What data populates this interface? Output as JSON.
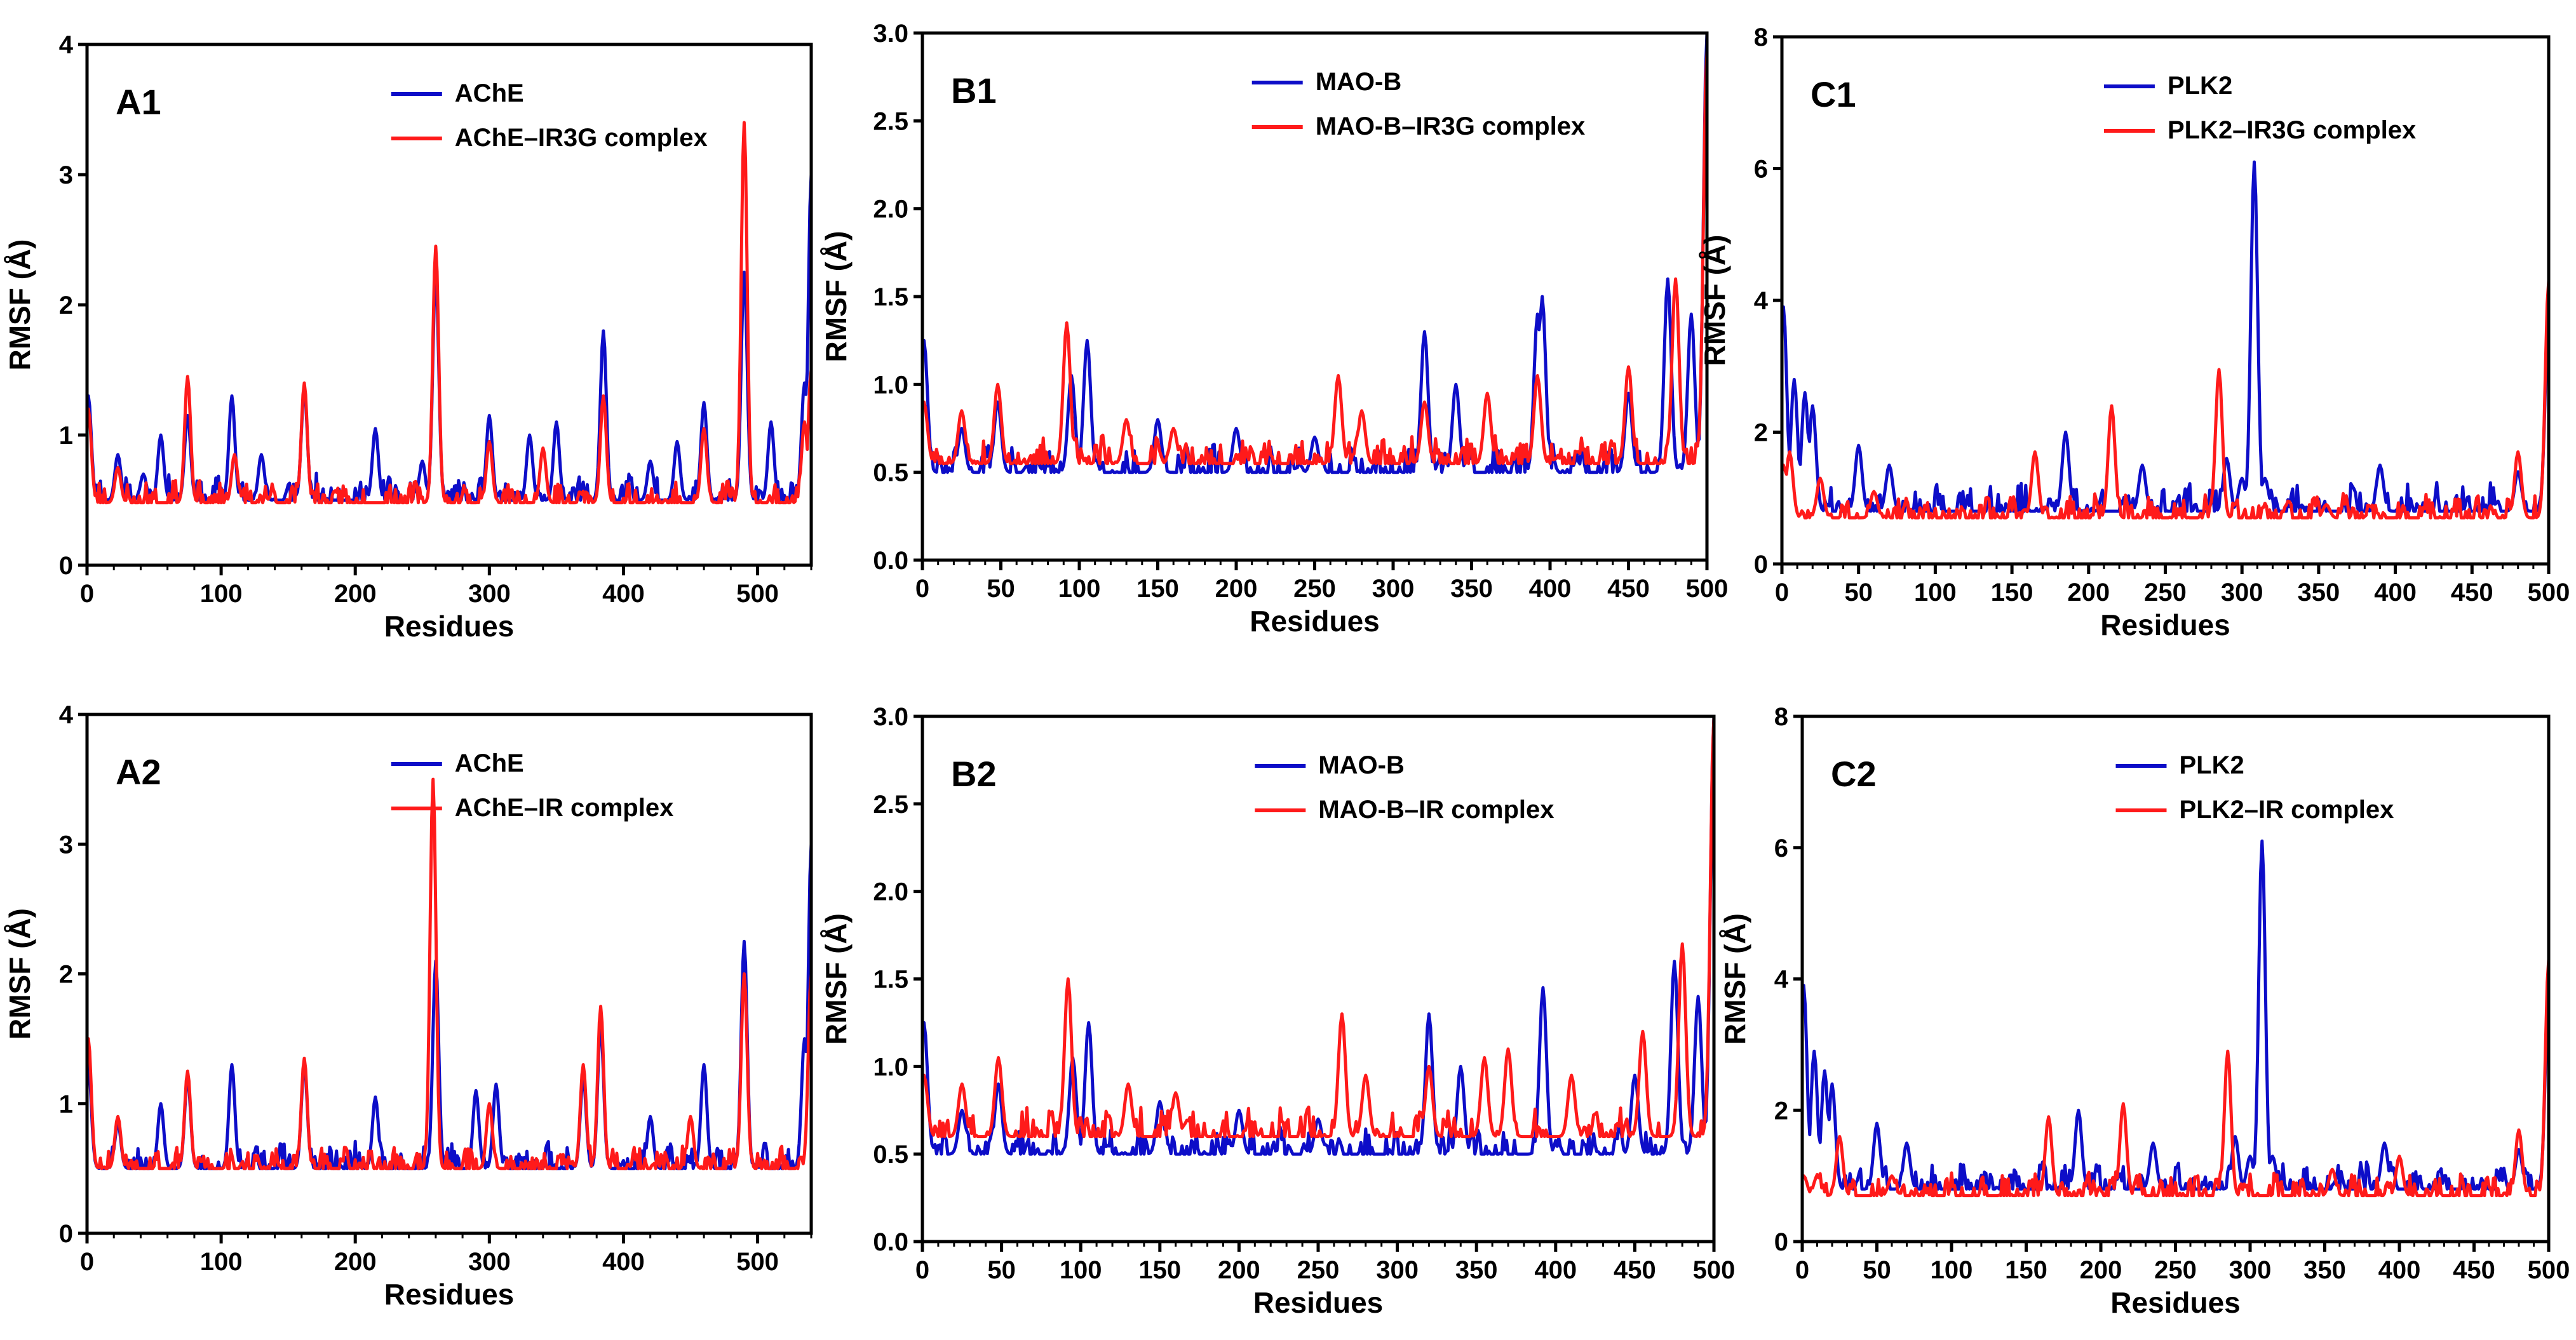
{
  "figure": {
    "colors": {
      "protein": "#0d0dc8",
      "complex": "#ff1a1a",
      "axis": "#000000"
    }
  },
  "chart_data": [
    {
      "id": "A1",
      "type": "line",
      "panel_label": "A1",
      "xlabel": "Residues",
      "ylabel": "RMSF (Å)",
      "xlim": [
        0,
        540
      ],
      "ylim": [
        0,
        4
      ],
      "xticks": [
        0,
        100,
        200,
        300,
        400,
        500
      ],
      "yticks": [
        0,
        1,
        2,
        3,
        4
      ],
      "ytick_labels": [
        "0",
        "1",
        "2",
        "3",
        "4"
      ],
      "legend": [
        "AChE",
        "AChE–IR3G complex"
      ],
      "series": [
        {
          "name": "AChE",
          "color": "#0d0dc8",
          "baseline": 0.5,
          "noise": 0.14,
          "seed": 11,
          "peaks": [
            [
              1,
              1.3
            ],
            [
              23,
              0.85
            ],
            [
              42,
              0.7
            ],
            [
              55,
              1.0
            ],
            [
              75,
              1.15
            ],
            [
              108,
              1.3
            ],
            [
              130,
              0.85
            ],
            [
              162,
              1.35
            ],
            [
              215,
              1.05
            ],
            [
              250,
              0.8
            ],
            [
              260,
              2.25
            ],
            [
              300,
              1.15
            ],
            [
              330,
              1.0
            ],
            [
              350,
              1.1
            ],
            [
              385,
              1.8
            ],
            [
              420,
              0.8
            ],
            [
              440,
              0.95
            ],
            [
              460,
              1.25
            ],
            [
              490,
              2.25
            ],
            [
              510,
              1.1
            ],
            [
              535,
              1.4
            ],
            [
              540,
              3.0
            ]
          ]
        },
        {
          "name": "AChE–IR3G complex",
          "color": "#ff1a1a",
          "baseline": 0.48,
          "noise": 0.12,
          "seed": 23,
          "peaks": [
            [
              1,
              1.2
            ],
            [
              23,
              0.75
            ],
            [
              75,
              1.45
            ],
            [
              110,
              0.85
            ],
            [
              162,
              1.4
            ],
            [
              260,
              2.45
            ],
            [
              300,
              0.95
            ],
            [
              340,
              0.9
            ],
            [
              385,
              1.3
            ],
            [
              460,
              1.05
            ],
            [
              490,
              3.4
            ],
            [
              535,
              1.1
            ],
            [
              540,
              1.5
            ]
          ]
        }
      ]
    },
    {
      "id": "B1",
      "type": "line",
      "panel_label": "B1",
      "xlabel": "Residues",
      "ylabel": "RMSF (Å)",
      "xlim": [
        0,
        500
      ],
      "ylim": [
        0,
        3
      ],
      "xticks": [
        0,
        50,
        100,
        150,
        200,
        250,
        300,
        350,
        400,
        450,
        500
      ],
      "yticks": [
        0,
        0.5,
        1,
        1.5,
        2,
        2.5,
        3
      ],
      "ytick_labels": [
        "0.0",
        "0.5",
        "1.0",
        "1.5",
        "2.0",
        "2.5",
        "3.0"
      ],
      "legend": [
        "MAO-B",
        "MAO-B–IR3G complex"
      ],
      "series": [
        {
          "name": "MAO-B",
          "color": "#0d0dc8",
          "baseline": 0.5,
          "noise": 0.11,
          "seed": 31,
          "peaks": [
            [
              1,
              1.25
            ],
            [
              25,
              0.75
            ],
            [
              48,
              0.9
            ],
            [
              95,
              1.05
            ],
            [
              105,
              1.25
            ],
            [
              150,
              0.8
            ],
            [
              200,
              0.75
            ],
            [
              250,
              0.7
            ],
            [
              320,
              1.3
            ],
            [
              340,
              1.0
            ],
            [
              392,
              1.4
            ],
            [
              395,
              1.5
            ],
            [
              450,
              0.95
            ],
            [
              475,
              1.6
            ],
            [
              490,
              1.4
            ],
            [
              500,
              3.0
            ]
          ]
        },
        {
          "name": "MAO-B–IR3G complex",
          "color": "#ff1a1a",
          "baseline": 0.55,
          "noise": 0.11,
          "seed": 37,
          "peaks": [
            [
              1,
              0.9
            ],
            [
              25,
              0.85
            ],
            [
              48,
              1.0
            ],
            [
              92,
              1.35
            ],
            [
              130,
              0.8
            ],
            [
              160,
              0.75
            ],
            [
              265,
              1.05
            ],
            [
              280,
              0.85
            ],
            [
              320,
              0.9
            ],
            [
              360,
              0.95
            ],
            [
              392,
              1.05
            ],
            [
              450,
              1.1
            ],
            [
              480,
              1.6
            ],
            [
              500,
              2.9
            ]
          ]
        }
      ]
    },
    {
      "id": "C1",
      "type": "line",
      "panel_label": "C1",
      "xlabel": "Residues",
      "ylabel": "RMSF (Å)",
      "xlim": [
        0,
        500
      ],
      "ylim": [
        0,
        8
      ],
      "xticks": [
        0,
        50,
        100,
        150,
        200,
        250,
        300,
        350,
        400,
        450,
        500
      ],
      "yticks": [
        0,
        2,
        4,
        6,
        8
      ],
      "ytick_labels": [
        "0",
        "2",
        "4",
        "6",
        "8"
      ],
      "legend": [
        "PLK2",
        "PLK2–IR3G complex"
      ],
      "series": [
        {
          "name": "PLK2",
          "color": "#0d0dc8",
          "baseline": 0.8,
          "noise": 0.3,
          "seed": 41,
          "peaks": [
            [
              1,
              3.9
            ],
            [
              8,
              2.8
            ],
            [
              15,
              2.6
            ],
            [
              20,
              2.4
            ],
            [
              50,
              1.8
            ],
            [
              70,
              1.5
            ],
            [
              185,
              2.0
            ],
            [
              235,
              1.5
            ],
            [
              290,
              1.6
            ],
            [
              300,
              1.3
            ],
            [
              308,
              6.1
            ],
            [
              315,
              1.3
            ],
            [
              390,
              1.5
            ],
            [
              480,
              1.4
            ],
            [
              500,
              3.9
            ]
          ]
        },
        {
          "name": "PLK2–IR3G complex",
          "color": "#ff1a1a",
          "baseline": 0.7,
          "noise": 0.25,
          "seed": 43,
          "peaks": [
            [
              1,
              1.5
            ],
            [
              5,
              1.7
            ],
            [
              25,
              1.3
            ],
            [
              60,
              1.1
            ],
            [
              165,
              1.7
            ],
            [
              215,
              2.4
            ],
            [
              285,
              2.95
            ],
            [
              355,
              0.9
            ],
            [
              480,
              1.7
            ],
            [
              500,
              4.3
            ]
          ]
        }
      ]
    },
    {
      "id": "A2",
      "type": "line",
      "panel_label": "A2",
      "xlabel": "Residues",
      "ylabel": "RMSF (Å)",
      "xlim": [
        0,
        540
      ],
      "ylim": [
        0,
        4
      ],
      "xticks": [
        0,
        100,
        200,
        300,
        400,
        500
      ],
      "yticks": [
        0,
        1,
        2,
        3,
        4
      ],
      "ytick_labels": [
        "0",
        "1",
        "2",
        "3",
        "4"
      ],
      "legend": [
        "AChE",
        "AChE–IR complex"
      ],
      "series": [
        {
          "name": "AChE",
          "color": "#0d0dc8",
          "baseline": 0.5,
          "noise": 0.14,
          "seed": 51,
          "peaks": [
            [
              1,
              1.3
            ],
            [
              23,
              0.85
            ],
            [
              55,
              1.0
            ],
            [
              75,
              1.2
            ],
            [
              108,
              1.3
            ],
            [
              162,
              1.3
            ],
            [
              215,
              1.05
            ],
            [
              260,
              2.1
            ],
            [
              290,
              1.1
            ],
            [
              305,
              1.15
            ],
            [
              370,
              1.2
            ],
            [
              383,
              1.6
            ],
            [
              420,
              0.9
            ],
            [
              460,
              1.3
            ],
            [
              490,
              2.25
            ],
            [
              535,
              1.5
            ],
            [
              540,
              3.0
            ]
          ]
        },
        {
          "name": "AChE–IR complex",
          "color": "#ff1a1a",
          "baseline": 0.5,
          "noise": 0.12,
          "seed": 53,
          "peaks": [
            [
              1,
              1.5
            ],
            [
              23,
              0.9
            ],
            [
              75,
              1.25
            ],
            [
              162,
              1.35
            ],
            [
              258,
              3.5
            ],
            [
              300,
              1.0
            ],
            [
              370,
              1.3
            ],
            [
              383,
              1.75
            ],
            [
              450,
              0.9
            ],
            [
              490,
              2.0
            ],
            [
              540,
              2.0
            ]
          ]
        }
      ]
    },
    {
      "id": "B2",
      "type": "line",
      "panel_label": "B2",
      "xlabel": "Residues",
      "ylabel": "RMSF (Å)",
      "xlim": [
        0,
        500
      ],
      "ylim": [
        0,
        3
      ],
      "xticks": [
        0,
        50,
        100,
        150,
        200,
        250,
        300,
        350,
        400,
        450,
        500
      ],
      "yticks": [
        0,
        0.5,
        1,
        1.5,
        2,
        2.5,
        3
      ],
      "ytick_labels": [
        "0.0",
        "0.5",
        "1.0",
        "1.5",
        "2.0",
        "2.5",
        "3.0"
      ],
      "legend": [
        "MAO-B",
        "MAO-B–IR complex"
      ],
      "series": [
        {
          "name": "MAO-B",
          "color": "#0d0dc8",
          "baseline": 0.5,
          "noise": 0.11,
          "seed": 61,
          "peaks": [
            [
              1,
              1.25
            ],
            [
              25,
              0.75
            ],
            [
              48,
              0.9
            ],
            [
              95,
              1.05
            ],
            [
              105,
              1.25
            ],
            [
              150,
              0.8
            ],
            [
              200,
              0.75
            ],
            [
              250,
              0.7
            ],
            [
              320,
              1.3
            ],
            [
              340,
              1.0
            ],
            [
              392,
              1.45
            ],
            [
              450,
              0.95
            ],
            [
              475,
              1.6
            ],
            [
              490,
              1.4
            ],
            [
              500,
              3.0
            ]
          ]
        },
        {
          "name": "MAO-B–IR complex",
          "color": "#ff1a1a",
          "baseline": 0.6,
          "noise": 0.12,
          "seed": 67,
          "peaks": [
            [
              1,
              0.95
            ],
            [
              25,
              0.9
            ],
            [
              48,
              1.05
            ],
            [
              92,
              1.5
            ],
            [
              130,
              0.9
            ],
            [
              160,
              0.85
            ],
            [
              265,
              1.3
            ],
            [
              280,
              0.95
            ],
            [
              320,
              1.0
            ],
            [
              355,
              1.05
            ],
            [
              370,
              1.1
            ],
            [
              410,
              0.95
            ],
            [
              455,
              1.2
            ],
            [
              480,
              1.7
            ],
            [
              500,
              3.0
            ]
          ]
        }
      ]
    },
    {
      "id": "C2",
      "type": "line",
      "panel_label": "C2",
      "xlabel": "Residues",
      "ylabel": "RMSF (Å)",
      "xlim": [
        0,
        500
      ],
      "ylim": [
        0,
        8
      ],
      "xticks": [
        0,
        50,
        100,
        150,
        200,
        250,
        300,
        350,
        400,
        450,
        500
      ],
      "yticks": [
        0,
        2,
        4,
        6,
        8
      ],
      "ytick_labels": [
        "0",
        "2",
        "4",
        "6",
        "8"
      ],
      "legend": [
        "PLK2",
        "PLK2–IR complex"
      ],
      "series": [
        {
          "name": "PLK2",
          "color": "#0d0dc8",
          "baseline": 0.8,
          "noise": 0.3,
          "seed": 71,
          "peaks": [
            [
              1,
              3.9
            ],
            [
              8,
              2.9
            ],
            [
              15,
              2.6
            ],
            [
              20,
              2.4
            ],
            [
              50,
              1.8
            ],
            [
              70,
              1.5
            ],
            [
              185,
              2.0
            ],
            [
              235,
              1.5
            ],
            [
              290,
              1.6
            ],
            [
              300,
              1.3
            ],
            [
              308,
              6.1
            ],
            [
              315,
              1.3
            ],
            [
              390,
              1.5
            ],
            [
              480,
              1.4
            ],
            [
              500,
              3.9
            ]
          ]
        },
        {
          "name": "PLK2–IR complex",
          "color": "#ff1a1a",
          "baseline": 0.7,
          "noise": 0.25,
          "seed": 73,
          "peaks": [
            [
              1,
              1.0
            ],
            [
              10,
              1.0
            ],
            [
              25,
              1.6
            ],
            [
              60,
              1.0
            ],
            [
              165,
              1.9
            ],
            [
              215,
              2.1
            ],
            [
              285,
              2.9
            ],
            [
              355,
              1.1
            ],
            [
              400,
              1.3
            ],
            [
              480,
              1.7
            ],
            [
              500,
              4.3
            ]
          ]
        }
      ]
    }
  ]
}
